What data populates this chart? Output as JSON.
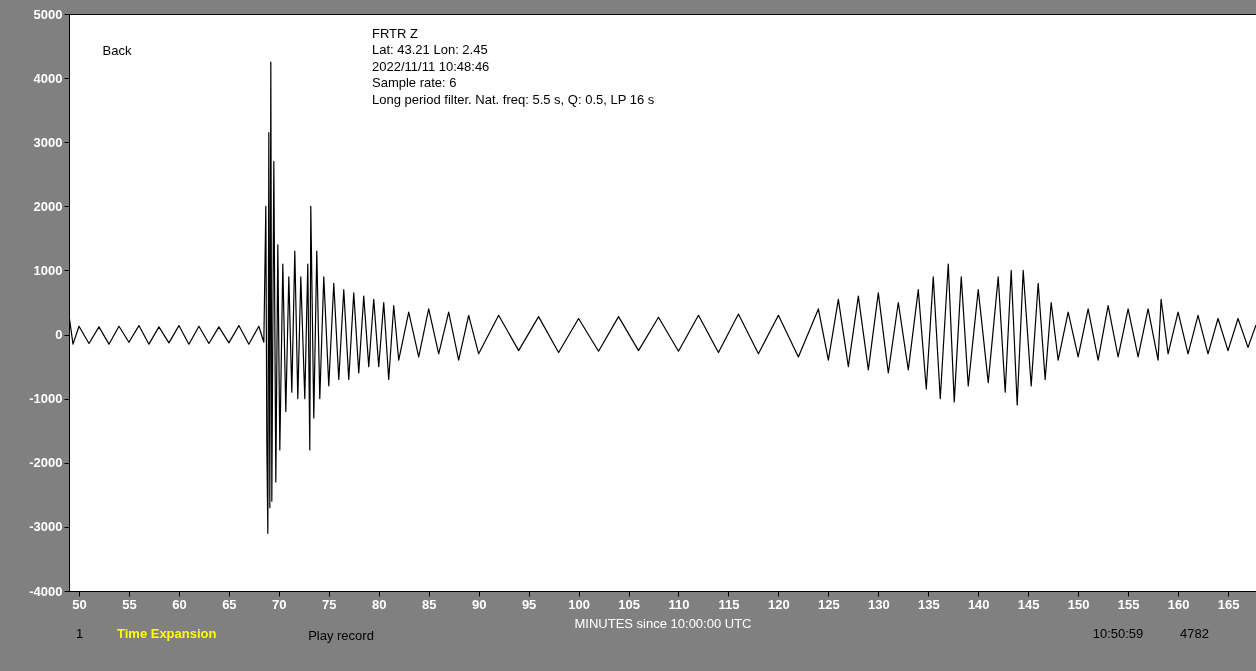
{
  "chart_data": {
    "type": "line",
    "title": "FRTR  Z",
    "xlabel": "MINUTES since 10:00:00 UTC",
    "annotations": [
      "Lat: 43.21 Lon: 2.45",
      "2022/11/11 10:48:46",
      "Sample rate: 6",
      "Long period filter. Nat. freq: 5.5 s, Q: 0.5, LP 16 s",
      "Back",
      "1",
      "Time Expansion",
      "Play record",
      "10:50:59",
      "4782"
    ],
    "xlim": [
      49.0,
      167.8
    ],
    "xticks": [
      50,
      55,
      60,
      65,
      70,
      75,
      80,
      85,
      90,
      95,
      100,
      105,
      110,
      115,
      120,
      125,
      130,
      135,
      140,
      145,
      150,
      155,
      160,
      165
    ],
    "ylim": [
      -4000,
      5000
    ],
    "yticks": [
      -4000,
      -3000,
      -2000,
      -1000,
      0,
      1000,
      2000,
      3000,
      4000,
      5000
    ],
    "grid": false,
    "series": [
      {
        "color": "#000000",
        "x": [
          49.0,
          49.4,
          50,
          51,
          52,
          53,
          54,
          55,
          56,
          57,
          58,
          59,
          60,
          61,
          62,
          63,
          64,
          65,
          66,
          67,
          68,
          68.5,
          68.7,
          68.8,
          68.9,
          69.0,
          69.1,
          69.2,
          69.3,
          69.5,
          69.7,
          69.9,
          70.1,
          70.4,
          70.7,
          71.0,
          71.3,
          71.6,
          71.9,
          72.2,
          72.6,
          72.9,
          73.1,
          73.2,
          73.5,
          73.8,
          74.1,
          74.5,
          75,
          75.5,
          76,
          76.5,
          77,
          77.5,
          78,
          78.5,
          79,
          79.5,
          80,
          80.5,
          81,
          81.5,
          82,
          83,
          84,
          85,
          86,
          87,
          88,
          89,
          90,
          92,
          94,
          96,
          98,
          100,
          102,
          104,
          106,
          108,
          110,
          112,
          114,
          116,
          118,
          120,
          122,
          124,
          125,
          126,
          127,
          128,
          129,
          130,
          131,
          132,
          133,
          134,
          134.8,
          135.5,
          136.2,
          137,
          137.6,
          138.3,
          139,
          140,
          141,
          142,
          142.7,
          143.3,
          143.9,
          144.5,
          145.3,
          146,
          146.7,
          147.3,
          148,
          149,
          150,
          151,
          152,
          153,
          154,
          155,
          156,
          157,
          158,
          158.3,
          159,
          160,
          161,
          162,
          163,
          164,
          165,
          166,
          167,
          167.8
        ],
        "values": [
          300,
          -150,
          130,
          -140,
          120,
          -150,
          130,
          -120,
          140,
          -150,
          120,
          -130,
          140,
          -150,
          130,
          -140,
          120,
          -130,
          140,
          -150,
          130,
          -120,
          2000,
          -1700,
          -3100,
          3150,
          -2700,
          4250,
          -2600,
          2700,
          -2300,
          1400,
          -1800,
          1100,
          -1200,
          900,
          -900,
          1300,
          -1000,
          900,
          -1000,
          1100,
          -1800,
          2000,
          -1300,
          1300,
          -1000,
          900,
          -800,
          800,
          -700,
          700,
          -700,
          650,
          -600,
          600,
          -500,
          550,
          -500,
          500,
          -700,
          450,
          -400,
          350,
          -350,
          400,
          -300,
          350,
          -400,
          300,
          -300,
          300,
          -250,
          280,
          -280,
          250,
          -260,
          280,
          -250,
          270,
          -260,
          300,
          -280,
          320,
          -300,
          300,
          -350,
          400,
          -400,
          550,
          -500,
          600,
          -550,
          650,
          -600,
          500,
          -550,
          700,
          -850,
          900,
          -1000,
          1100,
          -1050,
          900,
          -800,
          700,
          -750,
          900,
          -900,
          1000,
          -1100,
          1000,
          -800,
          800,
          -700,
          500,
          -400,
          350,
          -350,
          400,
          -400,
          450,
          -350,
          400,
          -350,
          400,
          -400,
          550,
          -300,
          350,
          -300,
          300,
          -300,
          250,
          -250,
          250,
          -200,
          150
        ]
      }
    ]
  }
}
